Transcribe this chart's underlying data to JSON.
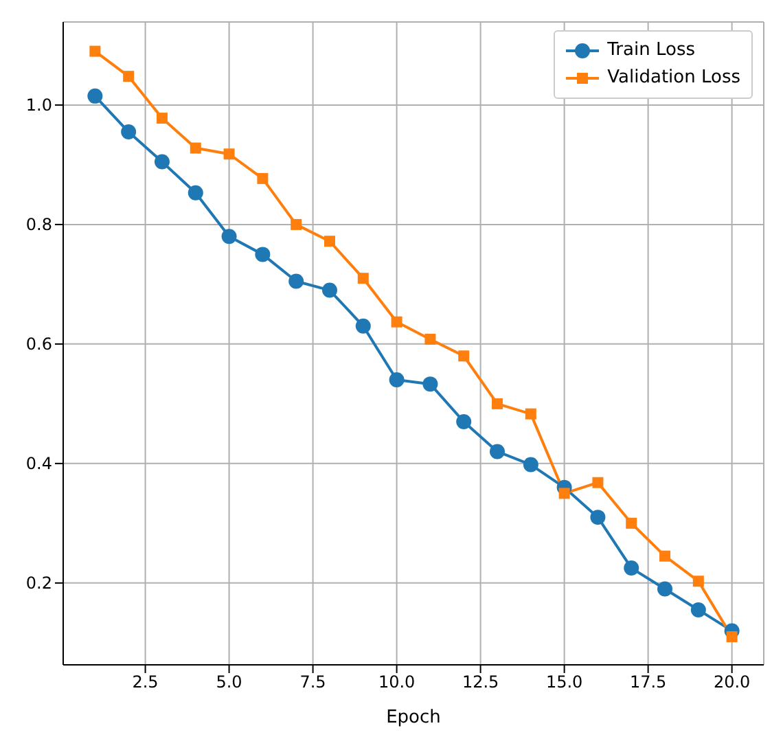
{
  "chart_data": {
    "type": "line",
    "xlabel": "Epoch",
    "x": [
      1,
      2,
      3,
      4,
      5,
      6,
      7,
      8,
      9,
      10,
      11,
      12,
      13,
      14,
      15,
      16,
      17,
      18,
      19,
      20
    ],
    "series": [
      {
        "name": "Train Loss",
        "color": "#1f77b4",
        "marker": "circle",
        "values": [
          1.015,
          0.955,
          0.905,
          0.853,
          0.78,
          0.75,
          0.705,
          0.69,
          0.63,
          0.54,
          0.533,
          0.47,
          0.42,
          0.398,
          0.36,
          0.31,
          0.225,
          0.19,
          0.155,
          0.12
        ]
      },
      {
        "name": "Validation Loss",
        "color": "#ff7f0e",
        "marker": "square",
        "values": [
          1.09,
          1.048,
          0.978,
          0.928,
          0.918,
          0.877,
          0.8,
          0.772,
          0.71,
          0.637,
          0.608,
          0.58,
          0.5,
          0.483,
          0.35,
          0.368,
          0.3,
          0.245,
          0.203,
          0.11
        ]
      }
    ],
    "xlim": [
      0.05,
      20.95
    ],
    "ylim": [
      0.063,
      1.139
    ],
    "xticks": [
      {
        "value": 2.5,
        "label": "2.5"
      },
      {
        "value": 5,
        "label": "5.0"
      },
      {
        "value": 7.5,
        "label": "7.5"
      },
      {
        "value": 10,
        "label": "10.0"
      },
      {
        "value": 12.5,
        "label": "12.5"
      },
      {
        "value": 15,
        "label": "15.0"
      },
      {
        "value": 17.5,
        "label": "17.5"
      },
      {
        "value": 20,
        "label": "20.0"
      }
    ],
    "yticks": [
      0.2,
      0.4,
      0.6,
      0.8,
      {
        "value": 1,
        "label": "1.0"
      }
    ],
    "grid": true,
    "legend": "top right",
    "line_style": "solid"
  }
}
